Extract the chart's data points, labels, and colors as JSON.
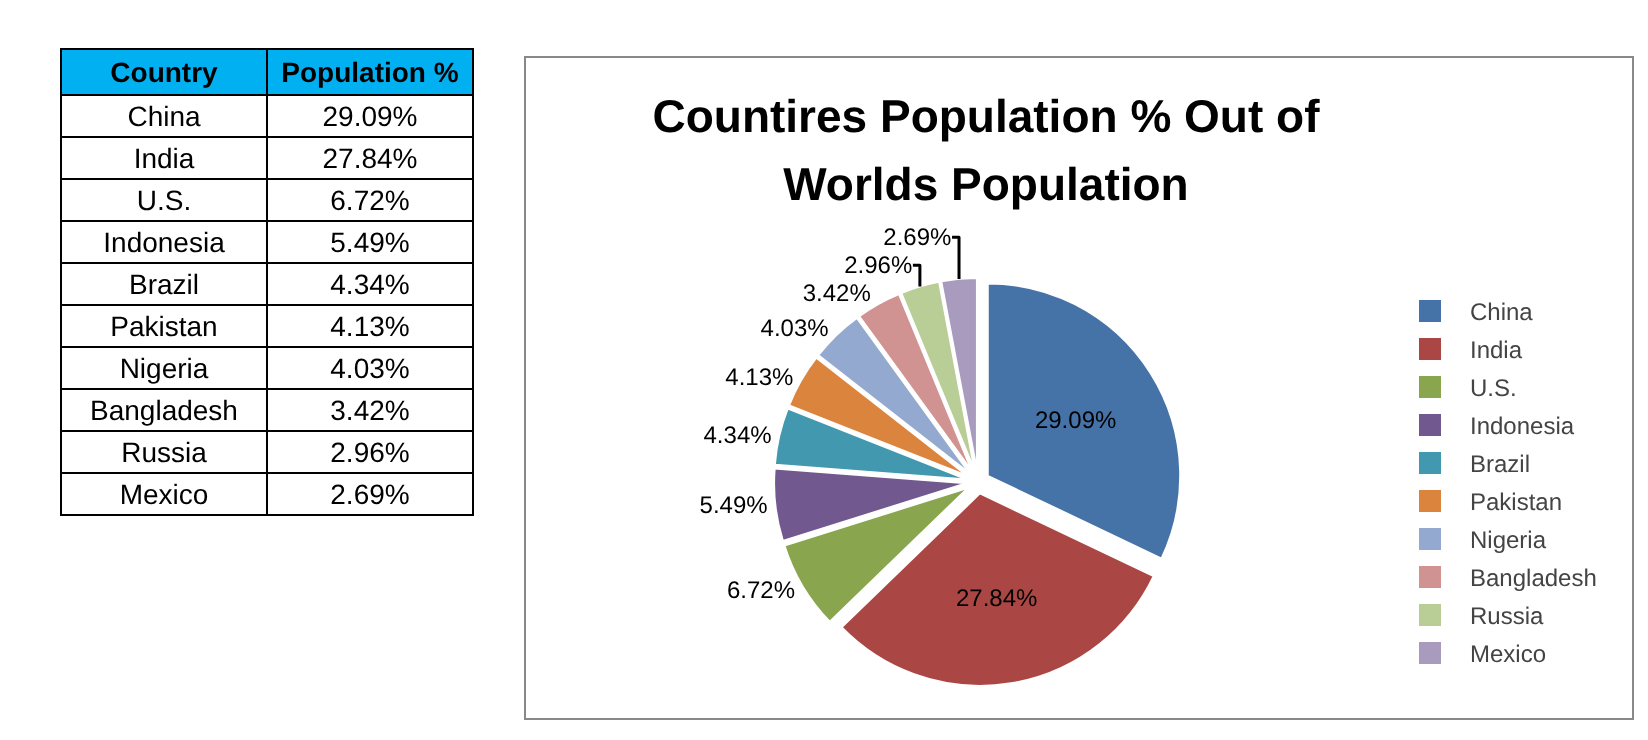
{
  "chart_data": {
    "type": "pie",
    "title": "Countires Population % Out of Worlds Population",
    "categories": [
      "China",
      "India",
      "U.S.",
      "Indonesia",
      "Brazil",
      "Pakistan",
      "Nigeria",
      "Bangladesh",
      "Russia",
      "Mexico"
    ],
    "values": [
      29.09,
      27.84,
      6.72,
      5.49,
      4.34,
      4.13,
      4.03,
      3.42,
      2.96,
      2.69
    ],
    "value_labels": [
      "29.09%",
      "27.84%",
      "6.72%",
      "5.49%",
      "4.34%",
      "4.13%",
      "4.03%",
      "3.42%",
      "2.96%",
      "2.69%"
    ],
    "colors": [
      "#4572a7",
      "#aa4643",
      "#89a54e",
      "#71588f",
      "#4198af",
      "#db843d",
      "#93a9cf",
      "#d19392",
      "#b9cd96",
      "#a99bbd"
    ],
    "annotations": [
      "Country",
      "Population %"
    ],
    "legend": "right"
  }
}
